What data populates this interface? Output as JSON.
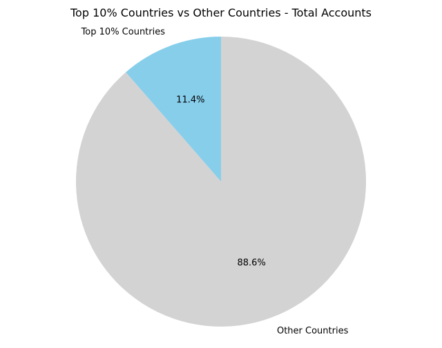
{
  "chart_data": {
    "type": "pie",
    "title": "Top 10% Countries vs Other Countries - Total Accounts",
    "start_angle_deg": 90,
    "direction": "counterclockwise",
    "slices": [
      {
        "label": "Top 10% Countries",
        "value": 11.4,
        "pct_label": "11.4%",
        "color": "#87ceeb"
      },
      {
        "label": "Other Countries",
        "value": 88.6,
        "pct_label": "88.6%",
        "color": "#d3d3d3"
      }
    ]
  }
}
